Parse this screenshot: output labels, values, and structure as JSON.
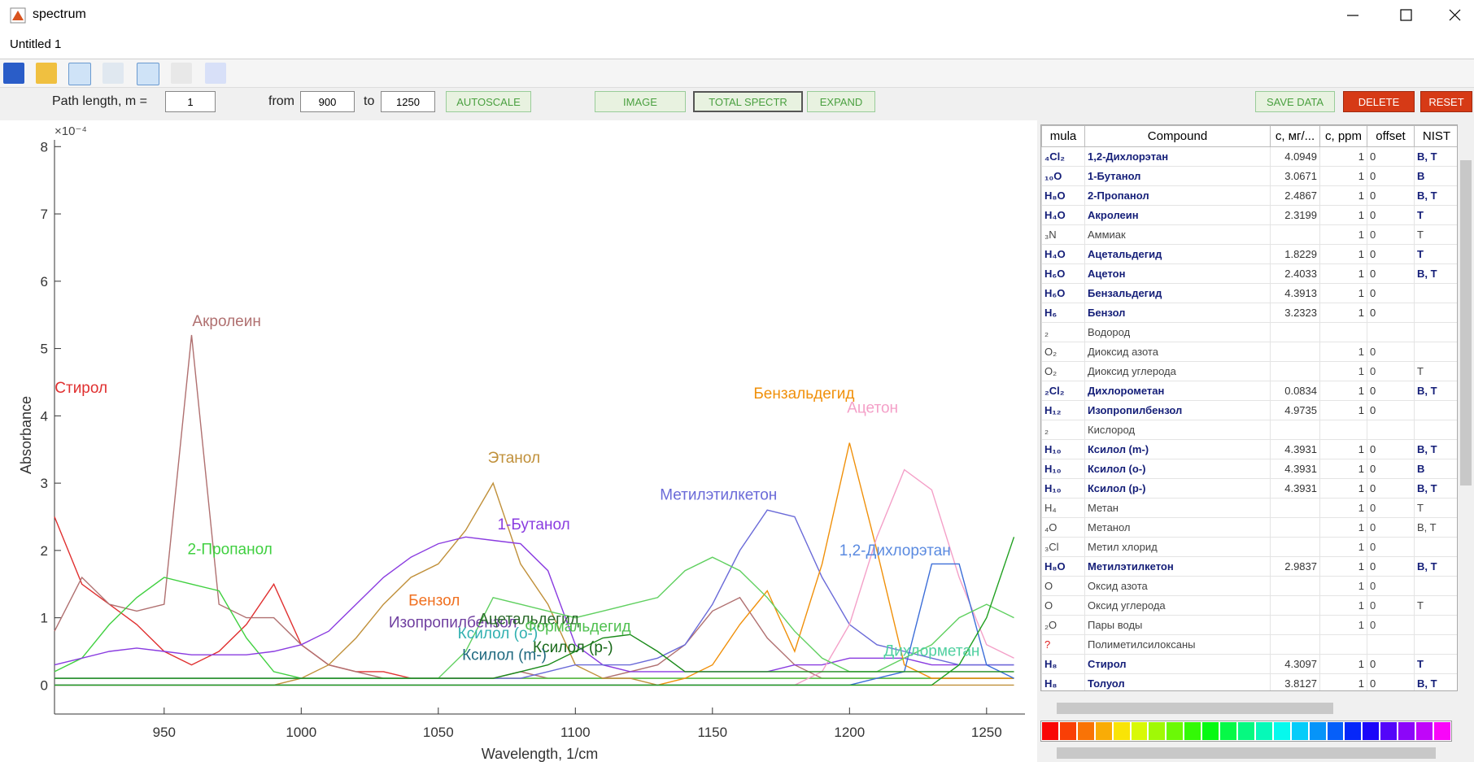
{
  "window": {
    "title": "spectrum",
    "document": "Untitled 1"
  },
  "controls": {
    "path_label": "Path length, m =",
    "path_value": 1,
    "from_label": "from",
    "from_value": 900,
    "to_label": "to",
    "to_value": 1250,
    "buttons": [
      "AUTOSCALE",
      "IMAGE",
      "TOTAL SPECTR",
      "EXPAND",
      "SAVE DATA",
      "DELETE",
      "RESET"
    ]
  },
  "chart_data": {
    "type": "line",
    "xlabel": "Wavelength, 1/cm",
    "ylabel": "Absorbance",
    "y_exponent": "×10⁻⁴",
    "xlim": [
      910,
      1264
    ],
    "ylim": [
      -0.43,
      8.1
    ],
    "xticks": [
      950,
      1000,
      1050,
      1100,
      1150,
      1200,
      1250
    ],
    "yticks": [
      0,
      1,
      2,
      3,
      4,
      5,
      6,
      7,
      8
    ],
    "x": [
      910,
      920,
      930,
      940,
      950,
      960,
      970,
      980,
      990,
      1000,
      1010,
      1020,
      1030,
      1040,
      1050,
      1060,
      1070,
      1080,
      1090,
      1100,
      1110,
      1120,
      1130,
      1140,
      1150,
      1160,
      1170,
      1180,
      1190,
      1200,
      1210,
      1220,
      1230,
      1240,
      1250,
      1260
    ],
    "series": [
      {
        "color": "#e03030",
        "values": [
          2.5,
          1.5,
          1.2,
          0.9,
          0.5,
          0.3,
          0.5,
          0.9,
          1.5,
          0.6,
          0.3,
          0.2,
          0.2,
          0.1,
          0.1,
          0.1,
          0.1,
          0.1,
          0.1,
          0.1,
          0.1,
          0.1,
          0.1,
          0.1,
          0.1,
          0.1,
          0.1,
          0.1,
          0.1,
          0.1,
          0.1,
          0.1,
          0.1,
          0.1,
          0.1,
          0.1
        ]
      },
      {
        "color": "#b07070",
        "values": [
          0.8,
          1.6,
          1.2,
          1.1,
          1.2,
          5.2,
          1.2,
          1.0,
          1.0,
          0.6,
          0.3,
          0.2,
          0.1,
          0.1,
          0.1,
          0.1,
          0.1,
          0.2,
          0.1,
          0.1,
          0.1,
          0.2,
          0.3,
          0.6,
          1.1,
          1.3,
          0.7,
          0.3,
          0.1,
          0.1,
          0.1,
          0.1,
          0.1,
          0.1,
          0.1,
          0.1
        ]
      },
      {
        "color": "#40d040",
        "values": [
          0.2,
          0.4,
          0.9,
          1.3,
          1.6,
          1.5,
          1.4,
          0.7,
          0.2,
          0.1,
          0.1,
          0.1,
          0.1,
          0.1,
          0.1,
          0.1,
          0.1,
          0.1,
          0.1,
          0.1,
          0.1,
          0.1,
          0.1,
          0.1,
          0.1,
          0.1,
          0.1,
          0.1,
          0.1,
          0.1,
          0.1,
          0.1,
          0.1,
          0.1,
          0.1,
          0.1
        ]
      },
      {
        "color": "#c0903a",
        "values": [
          0,
          0,
          0,
          0,
          0,
          0,
          0,
          0,
          0,
          0.1,
          0.3,
          0.7,
          1.2,
          1.6,
          1.8,
          2.3,
          3.0,
          1.8,
          1.2,
          0.3,
          0.1,
          0.1,
          0,
          0,
          0,
          0,
          0,
          0,
          0,
          0,
          0,
          0,
          0,
          0,
          0,
          0
        ]
      },
      {
        "color": "#8a3ce0",
        "values": [
          0.3,
          0.4,
          0.5,
          0.55,
          0.5,
          0.45,
          0.45,
          0.45,
          0.5,
          0.6,
          0.8,
          1.2,
          1.6,
          1.9,
          2.1,
          2.2,
          2.15,
          2.1,
          1.7,
          0.6,
          0.3,
          0.2,
          0.2,
          0.2,
          0.2,
          0.2,
          0.2,
          0.3,
          0.3,
          0.4,
          0.4,
          0.4,
          0.3,
          0.3,
          0.3,
          0.3
        ]
      },
      {
        "color": "#6a6ad8",
        "values": [
          0.1,
          0.1,
          0.1,
          0.1,
          0.1,
          0.1,
          0.1,
          0.1,
          0.1,
          0.1,
          0.1,
          0.1,
          0.1,
          0.1,
          0.1,
          0.1,
          0.1,
          0.1,
          0.2,
          0.3,
          0.3,
          0.3,
          0.4,
          0.6,
          1.2,
          2.0,
          2.6,
          2.5,
          1.6,
          0.9,
          0.6,
          0.5,
          0.4,
          0.3,
          0.3,
          0.3
        ]
      },
      {
        "color": "#f0900a",
        "values": [
          0,
          0,
          0,
          0,
          0,
          0,
          0,
          0,
          0,
          0,
          0,
          0,
          0,
          0,
          0,
          0,
          0,
          0,
          0,
          0,
          0,
          0,
          0,
          0.1,
          0.3,
          0.9,
          1.4,
          0.5,
          1.8,
          3.6,
          2.0,
          0.3,
          0.1,
          0.1,
          0.1,
          0.1
        ]
      },
      {
        "color": "#f4a0c8",
        "values": [
          0,
          0,
          0,
          0,
          0,
          0,
          0,
          0,
          0,
          0,
          0,
          0,
          0,
          0,
          0,
          0,
          0,
          0,
          0,
          0,
          0,
          0,
          0,
          0,
          0,
          0,
          0,
          0,
          0.2,
          0.9,
          2.2,
          3.2,
          2.9,
          1.6,
          0.6,
          0.4
        ]
      },
      {
        "color": "#3c6ed8",
        "values": [
          0,
          0,
          0,
          0,
          0,
          0,
          0,
          0,
          0,
          0,
          0,
          0,
          0,
          0,
          0,
          0,
          0,
          0,
          0,
          0,
          0,
          0,
          0,
          0,
          0,
          0,
          0,
          0,
          0,
          0,
          0.1,
          0.2,
          1.8,
          1.8,
          0.3,
          0.1
        ]
      },
      {
        "color": "#60d060",
        "values": [
          0.1,
          0.1,
          0.1,
          0.1,
          0.1,
          0.1,
          0.1,
          0.1,
          0.1,
          0.1,
          0.1,
          0.1,
          0.1,
          0.1,
          0.1,
          0.5,
          1.3,
          1.2,
          1.1,
          1.0,
          1.1,
          1.2,
          1.3,
          1.7,
          1.9,
          1.7,
          1.3,
          0.8,
          0.4,
          0.2,
          0.2,
          0.4,
          0.6,
          1.0,
          1.2,
          1.0
        ]
      },
      {
        "color": "#1a8a1a",
        "values": [
          0.1,
          0.1,
          0.1,
          0.1,
          0.1,
          0.1,
          0.1,
          0.1,
          0.1,
          0.1,
          0.1,
          0.1,
          0.1,
          0.1,
          0.1,
          0.1,
          0.1,
          0.2,
          0.3,
          0.5,
          0.7,
          0.75,
          0.5,
          0.2,
          0.2,
          0.2,
          0.2,
          0.2,
          0.2,
          0.2,
          0.2,
          0.2,
          0.2,
          0.2,
          0.2,
          0.2
        ]
      },
      {
        "color": "#20a020",
        "values": [
          0,
          0,
          0,
          0,
          0,
          0,
          0,
          0,
          0,
          0,
          0,
          0,
          0,
          0,
          0,
          0,
          0,
          0,
          0,
          0,
          0,
          0,
          0,
          0,
          0,
          0,
          0,
          0,
          0,
          0,
          0,
          0,
          0,
          0.3,
          1.0,
          2.2
        ]
      }
    ],
    "annotations": [
      {
        "text": "Стирол",
        "x": 919.7,
        "y": 4.43,
        "color": "#e03030"
      },
      {
        "text": "Акролеин",
        "x": 972.8,
        "y": 5.42,
        "color": "#b07070"
      },
      {
        "text": "2-Пропанол",
        "x": 974,
        "y": 2.03,
        "color": "#40d040"
      },
      {
        "text": "Этанол",
        "x": 1077.6,
        "y": 3.39,
        "color": "#c0903a"
      },
      {
        "text": "1-Бутанол",
        "x": 1084.8,
        "y": 2.4,
        "color": "#8a3ce0"
      },
      {
        "text": "Метилэтилкетон",
        "x": 1152.2,
        "y": 2.84,
        "color": "#6a6ad8"
      },
      {
        "text": "Бензальдегид",
        "x": 1183.4,
        "y": 4.34,
        "color": "#f0900a"
      },
      {
        "text": "Ацетон",
        "x": 1208.4,
        "y": 4.13,
        "color": "#f4a0c8"
      },
      {
        "text": "1,2-Дихлорэтан",
        "x": 1216.6,
        "y": 2.01,
        "color": "#5a8ae0"
      },
      {
        "text": "Бензол",
        "x": 1048.5,
        "y": 1.27,
        "color": "#f07020"
      },
      {
        "text": "Изопропилбензол",
        "x": 1055.3,
        "y": 0.94,
        "color": "#7040a0"
      },
      {
        "text": "Ацетальдегид",
        "x": 1083,
        "y": 0.99,
        "color": "#2a6a2a"
      },
      {
        "text": "Формальдегид",
        "x": 1100.9,
        "y": 0.88,
        "color": "#50c050"
      },
      {
        "text": "Ксилол (o-)",
        "x": 1071.7,
        "y": 0.78,
        "color": "#30b0b0"
      },
      {
        "text": "Ксилол (р-)",
        "x": 1099.1,
        "y": 0.57,
        "color": "#1a6a1a"
      },
      {
        "text": "Ксилол (m-)",
        "x": 1074.1,
        "y": 0.46,
        "color": "#206a80"
      },
      {
        "text": "Дихлорметан",
        "x": 1230,
        "y": 0.52,
        "color": "#50d0a0"
      }
    ]
  },
  "table": {
    "columns": [
      "mula",
      "Compound",
      "c, мг/...",
      "c, ppm",
      "offset",
      "NIST"
    ],
    "rows": [
      [
        "₄Cl₂",
        "1,2-Дихлорэтан",
        4.0949,
        1,
        0,
        "B, T"
      ],
      [
        "₁₀O",
        "1-Бутанол",
        3.0671,
        1,
        0,
        "B"
      ],
      [
        "H₈O",
        "2-Пропанол",
        2.4867,
        1,
        0,
        "B, T"
      ],
      [
        "H₄O",
        "Акролеин",
        2.3199,
        1,
        0,
        "T"
      ],
      [
        "₃N",
        "Аммиак",
        null,
        1,
        0,
        "T"
      ],
      [
        "H₄O",
        "Ацетальдегид",
        1.8229,
        1,
        0,
        "T"
      ],
      [
        "H₆O",
        "Ацетон",
        2.4033,
        1,
        0,
        "B, T"
      ],
      [
        "H₆O",
        "Бензальдегид",
        4.3913,
        1,
        0,
        null
      ],
      [
        "H₆",
        "Бензол",
        3.2323,
        1,
        0,
        null
      ],
      [
        "₂",
        "Водород",
        null,
        null,
        null,
        null
      ],
      [
        "O₂",
        "Диоксид азота",
        null,
        1,
        0,
        null
      ],
      [
        "O₂",
        "Диоксид углерода",
        null,
        1,
        0,
        "T"
      ],
      [
        "₂Cl₂",
        "Дихлорометан",
        0.0834,
        1,
        0,
        "B, T"
      ],
      [
        "H₁₂",
        "Изопропилбензол",
        4.9735,
        1,
        0,
        null
      ],
      [
        "₂",
        "Кислород",
        null,
        null,
        null,
        null
      ],
      [
        "H₁₀",
        "Ксилол (m-)",
        4.3931,
        1,
        0,
        "B, T"
      ],
      [
        "H₁₀",
        "Ксилол (o-)",
        4.3931,
        1,
        0,
        "B"
      ],
      [
        "H₁₀",
        "Ксилол (p-)",
        4.3931,
        1,
        0,
        "B, T"
      ],
      [
        "H₄",
        "Метан",
        null,
        1,
        0,
        "T"
      ],
      [
        "₄O",
        "Метанол",
        null,
        1,
        0,
        "B, T"
      ],
      [
        "₃Cl",
        "Метил хлорид",
        null,
        1,
        0,
        null
      ],
      [
        "H₈O",
        "Метилэтилкетон",
        2.9837,
        1,
        0,
        "B, T"
      ],
      [
        "O",
        "Оксид азота",
        null,
        1,
        0,
        null
      ],
      [
        "O",
        "Оксид углерода",
        null,
        1,
        0,
        "T"
      ],
      [
        "₂O",
        "Пары воды",
        null,
        1,
        0,
        null
      ],
      [
        "?",
        "Полиметилсилоксаны",
        null,
        null,
        null,
        null
      ],
      [
        "H₈",
        "Стирол",
        4.3097,
        1,
        0,
        "T"
      ],
      [
        "H₈",
        "Толуол",
        3.8127,
        1,
        0,
        "B, T"
      ]
    ]
  }
}
